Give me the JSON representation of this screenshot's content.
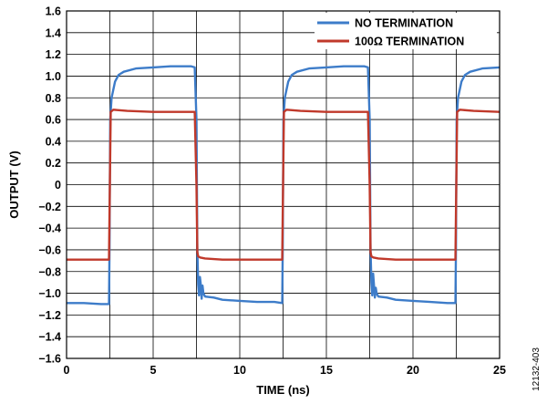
{
  "chart_data": {
    "type": "line",
    "title": "",
    "xlabel": "TIME (ns)",
    "ylabel": "OUTPUT (V)",
    "xlim": [
      0,
      25
    ],
    "ylim": [
      -1.6,
      1.6
    ],
    "x_ticks": [
      0,
      5,
      10,
      15,
      20,
      25
    ],
    "x_tick_labels": [
      "0",
      "5",
      "10",
      "15",
      "20",
      "25"
    ],
    "x_minor_gridlines": [
      2.5,
      7.5,
      12.5,
      17.5,
      22.5
    ],
    "y_ticks": [
      -1.6,
      -1.4,
      -1.2,
      -1.0,
      -0.8,
      -0.6,
      -0.4,
      -0.2,
      0,
      0.2,
      0.4,
      0.6,
      0.8,
      1.0,
      1.2,
      1.4,
      1.6
    ],
    "y_tick_labels": [
      "−1.6",
      "−1.4",
      "−1.2",
      "−1.0",
      "−0.8",
      "−0.6",
      "−0.4",
      "−0.2",
      "0",
      "0.2",
      "0.4",
      "0.6",
      "0.8",
      "1.0",
      "1.2",
      "1.4",
      "1.6"
    ],
    "grid": true,
    "legend_position": "top-right",
    "series": [
      {
        "name": "NO TERMINATION",
        "color": "#3d7cc9",
        "points": [
          [
            0,
            -1.09
          ],
          [
            1,
            -1.09
          ],
          [
            2,
            -1.1
          ],
          [
            2.45,
            -1.1
          ],
          [
            2.48,
            -0.6
          ],
          [
            2.52,
            0.6
          ],
          [
            2.6,
            0.8
          ],
          [
            2.8,
            0.95
          ],
          [
            3.0,
            1.01
          ],
          [
            3.3,
            1.04
          ],
          [
            4.0,
            1.07
          ],
          [
            5.0,
            1.08
          ],
          [
            6.0,
            1.09
          ],
          [
            7.2,
            1.09
          ],
          [
            7.4,
            1.08
          ],
          [
            7.5,
            0.6
          ],
          [
            7.55,
            -0.6
          ],
          [
            7.6,
            -0.92
          ],
          [
            7.65,
            -1.02
          ],
          [
            7.7,
            -0.85
          ],
          [
            7.75,
            -0.92
          ],
          [
            7.8,
            -1.05
          ],
          [
            7.85,
            -0.93
          ],
          [
            7.9,
            -1.0
          ],
          [
            8.0,
            -1.03
          ],
          [
            8.5,
            -1.04
          ],
          [
            9.0,
            -1.06
          ],
          [
            10.0,
            -1.07
          ],
          [
            11.0,
            -1.08
          ],
          [
            12.0,
            -1.08
          ],
          [
            12.45,
            -1.09
          ],
          [
            12.48,
            -0.6
          ],
          [
            12.52,
            0.6
          ],
          [
            12.6,
            0.8
          ],
          [
            12.8,
            0.95
          ],
          [
            13.0,
            1.01
          ],
          [
            13.3,
            1.04
          ],
          [
            14.0,
            1.07
          ],
          [
            15.0,
            1.08
          ],
          [
            16.0,
            1.09
          ],
          [
            17.2,
            1.09
          ],
          [
            17.4,
            1.08
          ],
          [
            17.5,
            0.6
          ],
          [
            17.55,
            -0.6
          ],
          [
            17.6,
            -0.9
          ],
          [
            17.65,
            -1.02
          ],
          [
            17.7,
            -0.82
          ],
          [
            17.75,
            -0.93
          ],
          [
            17.8,
            -1.04
          ],
          [
            17.85,
            -0.95
          ],
          [
            17.9,
            -1.0
          ],
          [
            18.0,
            -1.03
          ],
          [
            18.5,
            -1.04
          ],
          [
            19.0,
            -1.06
          ],
          [
            20.0,
            -1.07
          ],
          [
            21.0,
            -1.08
          ],
          [
            22.0,
            -1.09
          ],
          [
            22.45,
            -1.09
          ],
          [
            22.48,
            -0.6
          ],
          [
            22.52,
            0.6
          ],
          [
            22.6,
            0.8
          ],
          [
            22.8,
            0.95
          ],
          [
            23.0,
            1.01
          ],
          [
            23.3,
            1.04
          ],
          [
            24.0,
            1.07
          ],
          [
            25.0,
            1.08
          ]
        ]
      },
      {
        "name": "100Ω TERMINATION",
        "color": "#c0392b",
        "points": [
          [
            0,
            -0.69
          ],
          [
            1,
            -0.69
          ],
          [
            2,
            -0.69
          ],
          [
            2.45,
            -0.69
          ],
          [
            2.5,
            0.0
          ],
          [
            2.55,
            0.67
          ],
          [
            2.7,
            0.69
          ],
          [
            3.5,
            0.68
          ],
          [
            5.0,
            0.67
          ],
          [
            6.5,
            0.67
          ],
          [
            7.3,
            0.67
          ],
          [
            7.4,
            0.67
          ],
          [
            7.5,
            0.0
          ],
          [
            7.55,
            -0.62
          ],
          [
            7.6,
            -0.66
          ],
          [
            7.7,
            -0.67
          ],
          [
            8.0,
            -0.68
          ],
          [
            9.0,
            -0.69
          ],
          [
            10.0,
            -0.69
          ],
          [
            11.0,
            -0.69
          ],
          [
            12.0,
            -0.69
          ],
          [
            12.45,
            -0.69
          ],
          [
            12.5,
            0.0
          ],
          [
            12.55,
            0.67
          ],
          [
            12.7,
            0.69
          ],
          [
            13.5,
            0.68
          ],
          [
            15.0,
            0.67
          ],
          [
            16.5,
            0.67
          ],
          [
            17.3,
            0.67
          ],
          [
            17.4,
            0.67
          ],
          [
            17.5,
            0.0
          ],
          [
            17.55,
            -0.62
          ],
          [
            17.6,
            -0.66
          ],
          [
            17.7,
            -0.67
          ],
          [
            18.0,
            -0.68
          ],
          [
            19.0,
            -0.69
          ],
          [
            20.0,
            -0.69
          ],
          [
            21.0,
            -0.69
          ],
          [
            22.0,
            -0.69
          ],
          [
            22.45,
            -0.69
          ],
          [
            22.5,
            0.0
          ],
          [
            22.55,
            0.67
          ],
          [
            22.7,
            0.69
          ],
          [
            23.5,
            0.68
          ],
          [
            25.0,
            0.67
          ]
        ]
      }
    ]
  },
  "figure_code": "12132-403"
}
